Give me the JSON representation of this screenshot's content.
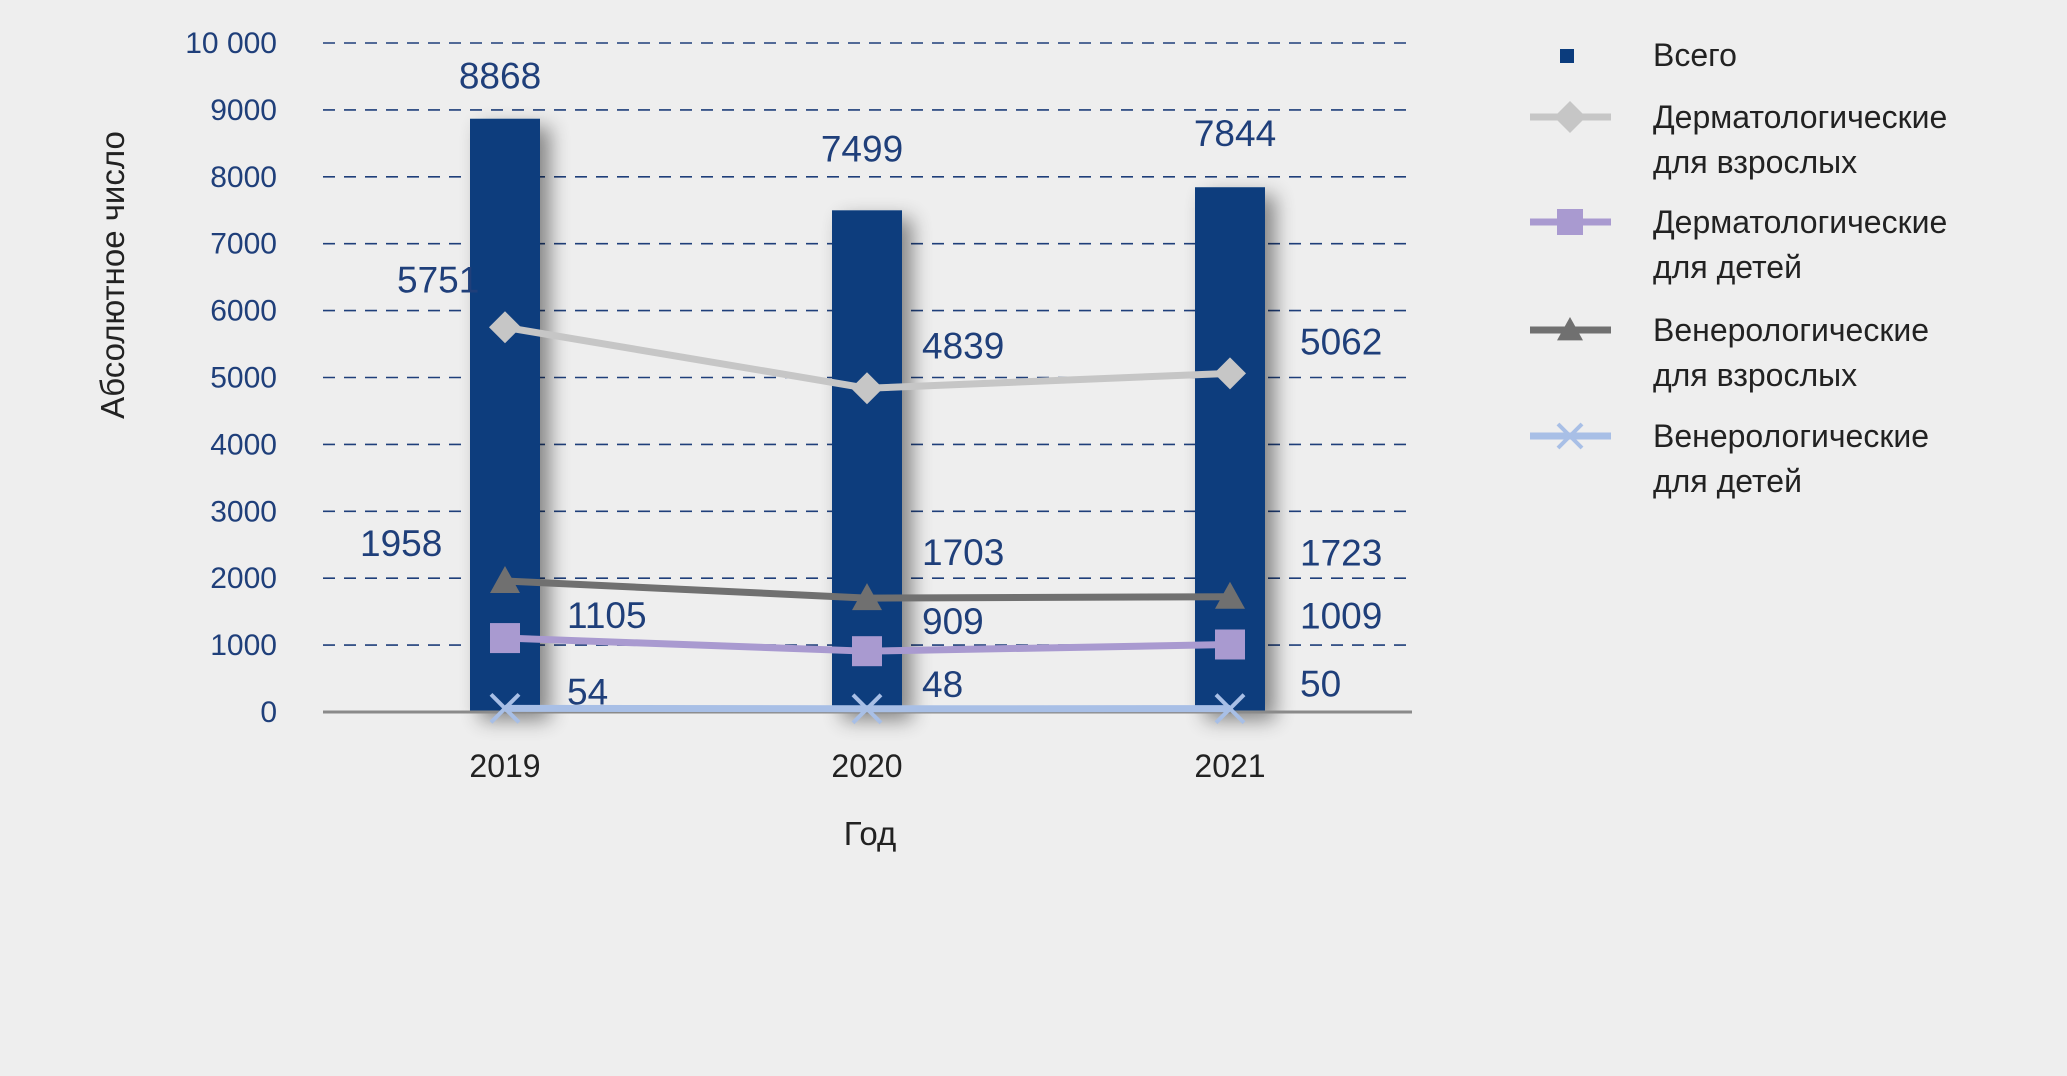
{
  "chart_data": {
    "type": "bar",
    "xlabel": "Год",
    "ylabel": "Абсолютное число",
    "ylim": [
      0,
      10000
    ],
    "y_ticks": [
      {
        "value": 0,
        "label": "0"
      },
      {
        "value": 1000,
        "label": "1000"
      },
      {
        "value": 2000,
        "label": "2000"
      },
      {
        "value": 3000,
        "label": "3000"
      },
      {
        "value": 4000,
        "label": "4000"
      },
      {
        "value": 5000,
        "label": "5000"
      },
      {
        "value": 6000,
        "label": "6000"
      },
      {
        "value": 7000,
        "label": "7000"
      },
      {
        "value": 8000,
        "label": "8000"
      },
      {
        "value": 9000,
        "label": "9000"
      },
      {
        "value": 10000,
        "label": "10 000"
      }
    ],
    "grid": true,
    "legend_position": "right",
    "categories": [
      "2019",
      "2020",
      "2021"
    ],
    "series": [
      {
        "name": "Всего",
        "kind": "bar",
        "marker": "square",
        "color": "#0b3c7d",
        "values": [
          8868,
          7499,
          7844
        ],
        "labels": [
          "8868",
          "7499",
          "7844"
        ]
      },
      {
        "name": "Дерматологические для взрослых",
        "legend_lines": [
          "Дерматологические",
          "для взрослых"
        ],
        "kind": "line",
        "marker": "diamond",
        "color": "#c6c6c6",
        "values": [
          5751,
          4839,
          5062
        ],
        "labels": [
          "5751",
          "4839",
          "5062"
        ]
      },
      {
        "name": "Дерматологические для детей",
        "legend_lines": [
          "Дерматологические",
          "для детей"
        ],
        "kind": "line",
        "marker": "square",
        "color": "#a99ad0",
        "values": [
          1105,
          909,
          1009
        ],
        "labels": [
          "1105",
          "909",
          "1009"
        ]
      },
      {
        "name": "Венерологические для взрослых",
        "legend_lines": [
          "Венерологические",
          "для взрослых"
        ],
        "kind": "line",
        "marker": "triangle",
        "color": "#707070",
        "values": [
          1958,
          1703,
          1723
        ],
        "labels": [
          "1958",
          "1703",
          "1723"
        ]
      },
      {
        "name": "Венерологические для детей",
        "legend_lines": [
          "Венерологические",
          "для детей"
        ],
        "kind": "line",
        "marker": "x",
        "color": "#a8bfe6",
        "values": [
          54,
          48,
          50
        ],
        "labels": [
          "54",
          "48",
          "50"
        ]
      }
    ]
  }
}
